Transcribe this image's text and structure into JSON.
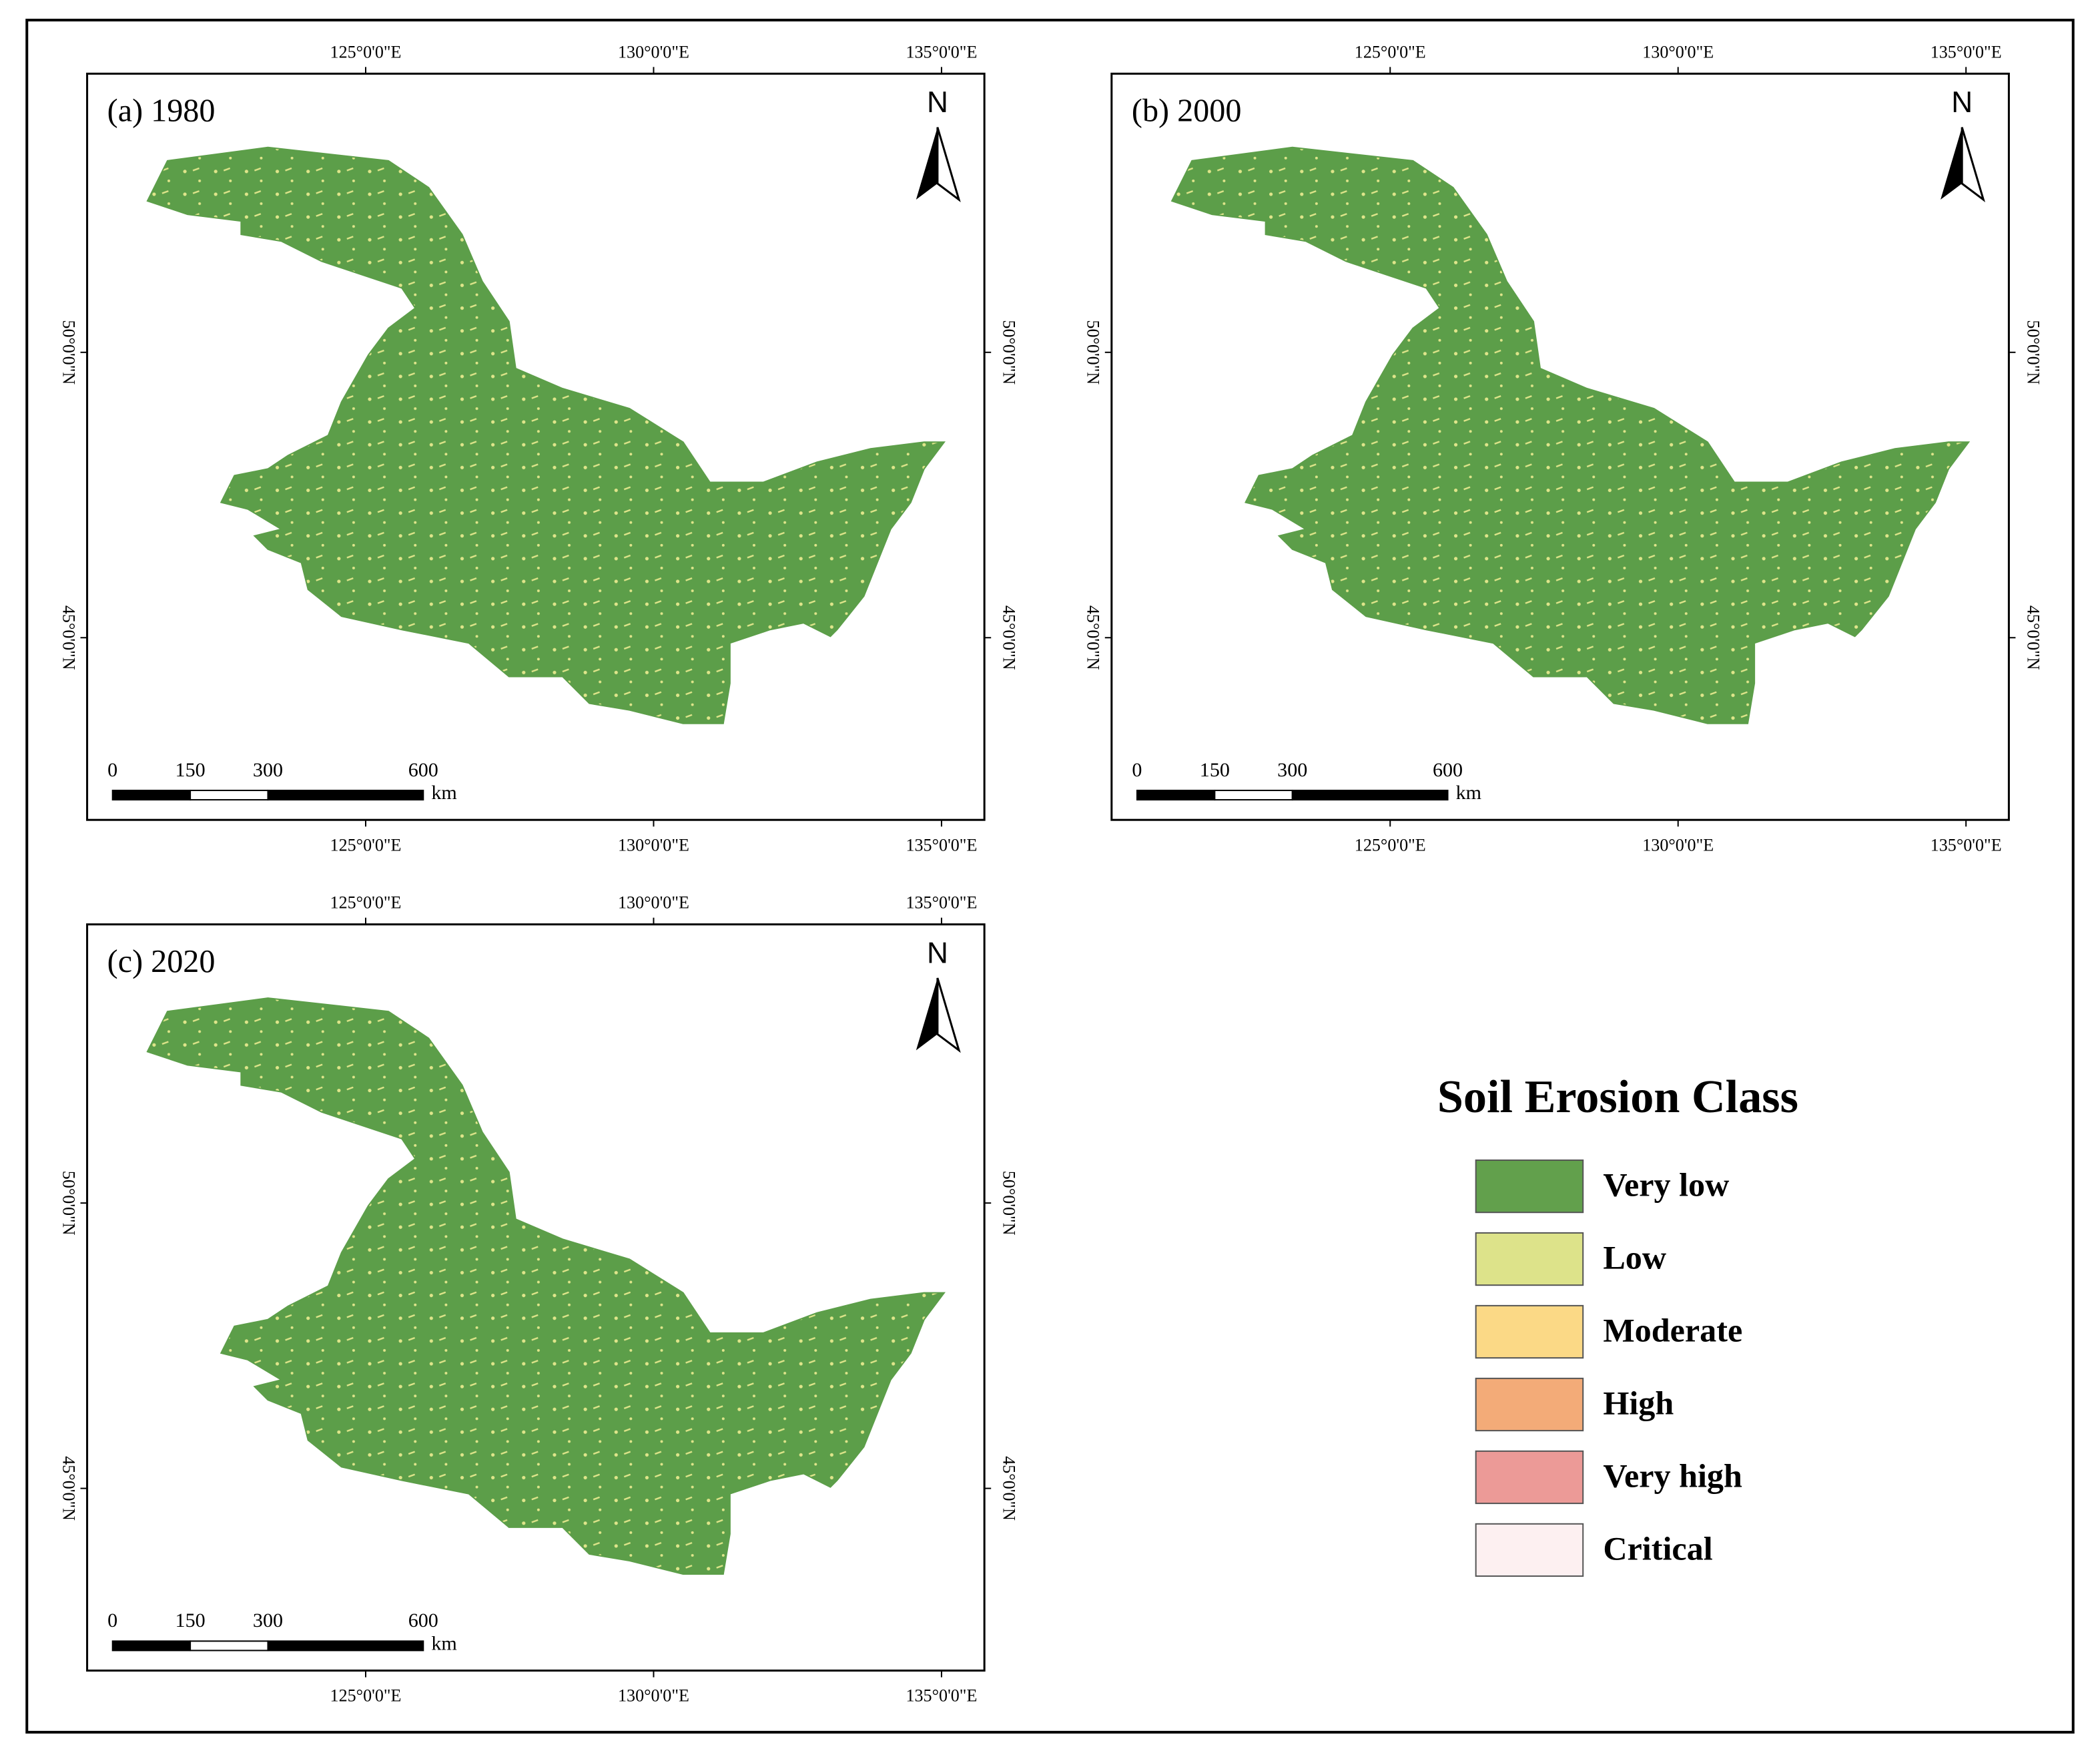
{
  "panels": [
    {
      "label": "(a) 1980"
    },
    {
      "label": "(b) 2000"
    },
    {
      "label": "(c) 2020"
    }
  ],
  "lon_labels": [
    "125°0'0\"E",
    "130°0'0\"E",
    "135°0'0\"E"
  ],
  "lat_labels": [
    "50°0'0\"N",
    "45°0'0\"N"
  ],
  "north": "N",
  "scale_bar": {
    "ticks": [
      0,
      150,
      300,
      600
    ],
    "unit": "km"
  },
  "legend": {
    "title": "Soil Erosion Class",
    "items": [
      {
        "label": "Very low",
        "color": "#62a04c"
      },
      {
        "label": "Low",
        "color": "#dde38a"
      },
      {
        "label": "Moderate",
        "color": "#fbd986"
      },
      {
        "label": "High",
        "color": "#f3ab78"
      },
      {
        "label": "Very high",
        "color": "#ec9a97"
      },
      {
        "label": "Critical",
        "color": "#fdf0f1"
      }
    ]
  }
}
